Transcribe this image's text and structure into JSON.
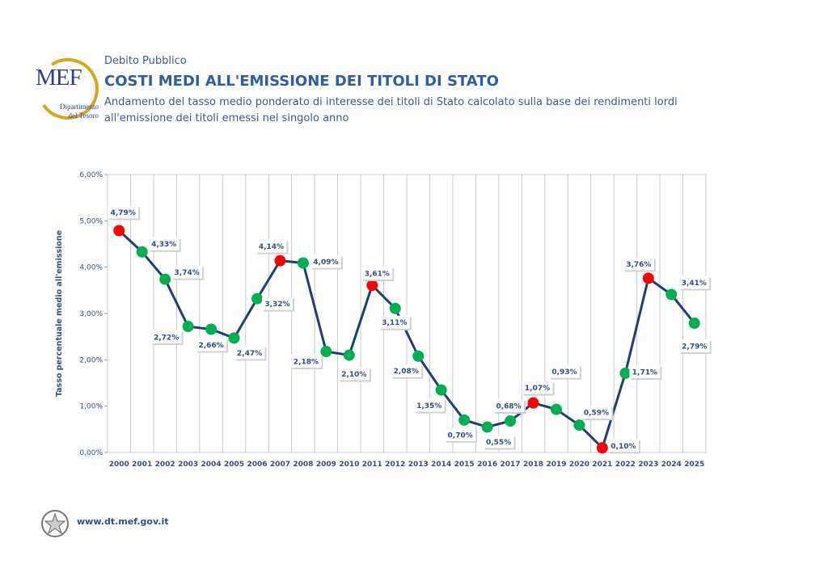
{
  "header": {
    "logo_text": "MEF",
    "logo_subtext": "Dipartimento del Tesoro",
    "section": "Debito Pubblico",
    "title": "COSTI MEDI ALL'EMISSIONE DEI TITOLI DI STATO",
    "subtitle": "Andamento del tasso medio ponderato di interesse dei titoli di Stato calcolato sulla base dei rendimenti lordi all'emissione dei titoli emessi nel singolo anno"
  },
  "footer": {
    "url": "www.dt.mef.gov.it"
  },
  "colors": {
    "line": "#1f3f73",
    "high": "#ff0000",
    "normal": "#00b050",
    "text": "#2f4f7f"
  },
  "chart_data": {
    "type": "line",
    "title": "",
    "xlabel": "",
    "ylabel": "Tasso percentuale medio all'emissione",
    "ylim": [
      0,
      6
    ],
    "yticks": [
      "0,00%",
      "1,00%",
      "2,00%",
      "3,00%",
      "4,00%",
      "5,00%",
      "6,00%"
    ],
    "grid": "vertical",
    "categories": [
      "2000",
      "2001",
      "2002",
      "2003",
      "2004",
      "2005",
      "2006",
      "2007",
      "2008",
      "2009",
      "2010",
      "2011",
      "2012",
      "2013",
      "2014",
      "2015",
      "2016",
      "2017",
      "2018",
      "2019",
      "2020",
      "2021",
      "2022",
      "2023",
      "2024",
      "2025"
    ],
    "values": [
      4.79,
      4.33,
      3.74,
      2.72,
      2.66,
      2.47,
      3.32,
      4.14,
      4.09,
      2.18,
      2.1,
      3.61,
      3.11,
      2.08,
      1.35,
      0.7,
      0.55,
      0.68,
      1.07,
      0.93,
      0.59,
      0.1,
      1.71,
      3.76,
      3.41,
      2.79
    ],
    "labels": [
      "4,79%",
      "4,33%",
      "3,74%",
      "2,72%",
      "2,66%",
      "2,47%",
      "3,32%",
      "4,14%",
      "4,09%",
      "2,18%",
      "2,10%",
      "3,61%",
      "3,11%",
      "2,08%",
      "1,35%",
      "0,70%",
      "0,55%",
      "0,68%",
      "1,07%",
      "0,93%",
      "0,59%",
      "0,10%",
      "1,71%",
      "3,76%",
      "3,41%",
      "2,79%"
    ],
    "marker_color": [
      "red",
      "green",
      "green",
      "green",
      "green",
      "green",
      "green",
      "red",
      "green",
      "green",
      "green",
      "red",
      "green",
      "green",
      "green",
      "green",
      "green",
      "green",
      "red",
      "green",
      "green",
      "red",
      "green",
      "red",
      "green",
      "green"
    ]
  }
}
